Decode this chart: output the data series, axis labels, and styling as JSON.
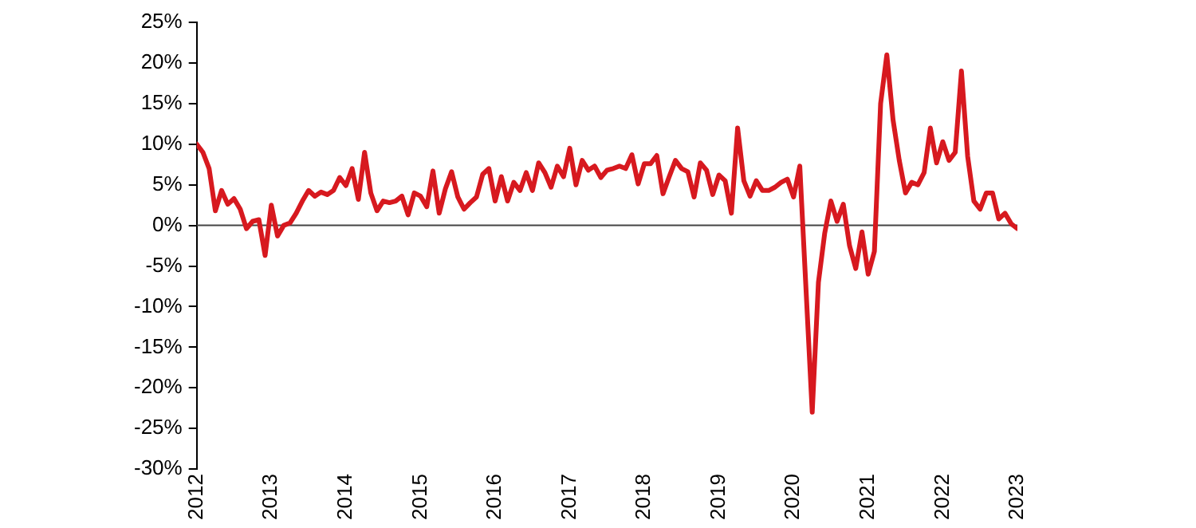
{
  "chart_data": {
    "type": "line",
    "x": [
      "2012-01",
      "2012-02",
      "2012-03",
      "2012-04",
      "2012-05",
      "2012-06",
      "2012-07",
      "2012-08",
      "2012-09",
      "2012-10",
      "2012-11",
      "2012-12",
      "2013-01",
      "2013-02",
      "2013-03",
      "2013-04",
      "2013-05",
      "2013-06",
      "2013-07",
      "2013-08",
      "2013-09",
      "2013-10",
      "2013-11",
      "2013-12",
      "2014-01",
      "2014-02",
      "2014-03",
      "2014-04",
      "2014-05",
      "2014-06",
      "2014-07",
      "2014-08",
      "2014-09",
      "2014-10",
      "2014-11",
      "2014-12",
      "2015-01",
      "2015-02",
      "2015-03",
      "2015-04",
      "2015-05",
      "2015-06",
      "2015-07",
      "2015-08",
      "2015-09",
      "2015-10",
      "2015-11",
      "2015-12",
      "2016-01",
      "2016-02",
      "2016-03",
      "2016-04",
      "2016-05",
      "2016-06",
      "2016-07",
      "2016-08",
      "2016-09",
      "2016-10",
      "2016-11",
      "2016-12",
      "2017-01",
      "2017-02",
      "2017-03",
      "2017-04",
      "2017-05",
      "2017-06",
      "2017-07",
      "2017-08",
      "2017-09",
      "2017-10",
      "2017-11",
      "2017-12",
      "2018-01",
      "2018-02",
      "2018-03",
      "2018-04",
      "2018-05",
      "2018-06",
      "2018-07",
      "2018-08",
      "2018-09",
      "2018-10",
      "2018-11",
      "2018-12",
      "2019-01",
      "2019-02",
      "2019-03",
      "2019-04",
      "2019-05",
      "2019-06",
      "2019-07",
      "2019-08",
      "2019-09",
      "2019-10",
      "2019-11",
      "2019-12",
      "2020-01",
      "2020-02",
      "2020-04",
      "2020-05",
      "2020-06",
      "2020-07",
      "2020-08",
      "2020-09",
      "2020-10",
      "2020-11",
      "2020-12",
      "2021-01",
      "2021-02",
      "2021-03",
      "2021-04",
      "2021-05",
      "2021-06",
      "2021-07",
      "2021-08",
      "2021-09",
      "2021-10",
      "2021-11",
      "2021-12",
      "2022-01",
      "2022-02",
      "2022-03",
      "2022-04",
      "2022-05",
      "2022-06",
      "2022-07",
      "2022-08",
      "2022-09",
      "2022-10",
      "2022-11",
      "2022-12",
      "2023-01"
    ],
    "series": [
      {
        "color": "#d7191f",
        "values": [
          10,
          9,
          7,
          1.8,
          4.3,
          2.6,
          3.3,
          2,
          -0.4,
          0.5,
          0.7,
          -3.7,
          2.5,
          -1.3,
          0,
          0.3,
          1.5,
          3,
          4.3,
          3.6,
          4.1,
          3.8,
          4.3,
          5.9,
          4.9,
          7,
          3.2,
          9,
          4,
          1.8,
          3,
          2.8,
          3,
          3.6,
          1.3,
          4,
          3.6,
          2.3,
          6.7,
          1.5,
          4.5,
          6.6,
          3.5,
          2,
          2.8,
          3.5,
          6.3,
          7,
          3,
          6,
          3,
          5.3,
          4.3,
          6.5,
          4.3,
          7.7,
          6.5,
          4.7,
          7.3,
          6,
          9.5,
          5,
          8,
          6.8,
          7.3,
          5.9,
          6.8,
          7,
          7.3,
          7,
          8.7,
          5.1,
          7.6,
          7.6,
          8.6,
          3.9,
          6,
          8,
          7,
          6.6,
          3.5,
          7.7,
          6.8,
          3.8,
          6.2,
          5.5,
          1.5,
          12,
          5.5,
          3.6,
          5.5,
          4.3,
          4.3,
          4.7,
          5.3,
          5.7,
          3.5,
          7.3,
          -23,
          -7,
          -1,
          3,
          0.5,
          2.6,
          -2.5,
          -5.3,
          -0.8,
          -6,
          -3.2,
          15,
          21,
          13,
          8,
          4,
          5.3,
          5,
          6.5,
          12,
          7.7,
          10.3,
          8,
          9,
          19,
          8.5,
          3,
          2,
          4,
          4,
          0.8,
          1.5,
          0.2,
          -0.4
        ]
      }
    ],
    "xlim": [
      "2012",
      "2023"
    ],
    "xticks": [
      "2012",
      "2013",
      "2014",
      "2015",
      "2016",
      "2017",
      "2018",
      "2019",
      "2020",
      "2021",
      "2022",
      "2023"
    ],
    "ylim": [
      -30,
      25
    ],
    "yticks": [
      {
        "value": -30,
        "label": "-30%"
      },
      {
        "value": -25,
        "label": "-25%"
      },
      {
        "value": -20,
        "label": "-20%"
      },
      {
        "value": -15,
        "label": "-15%"
      },
      {
        "value": -10,
        "label": "-10%"
      },
      {
        "value": -5,
        "label": "-5%"
      },
      {
        "value": 0,
        "label": "0%"
      },
      {
        "value": 5,
        "label": "5%"
      },
      {
        "value": 10,
        "label": "10%"
      },
      {
        "value": 15,
        "label": "15%"
      },
      {
        "value": 20,
        "label": "20%"
      },
      {
        "value": 25,
        "label": "25%"
      }
    ],
    "ref_lines": [
      {
        "axis": "y",
        "value": 0,
        "color": "#444444"
      }
    ],
    "grid": false,
    "legend": false,
    "marker": "none",
    "line_style": "solid"
  }
}
